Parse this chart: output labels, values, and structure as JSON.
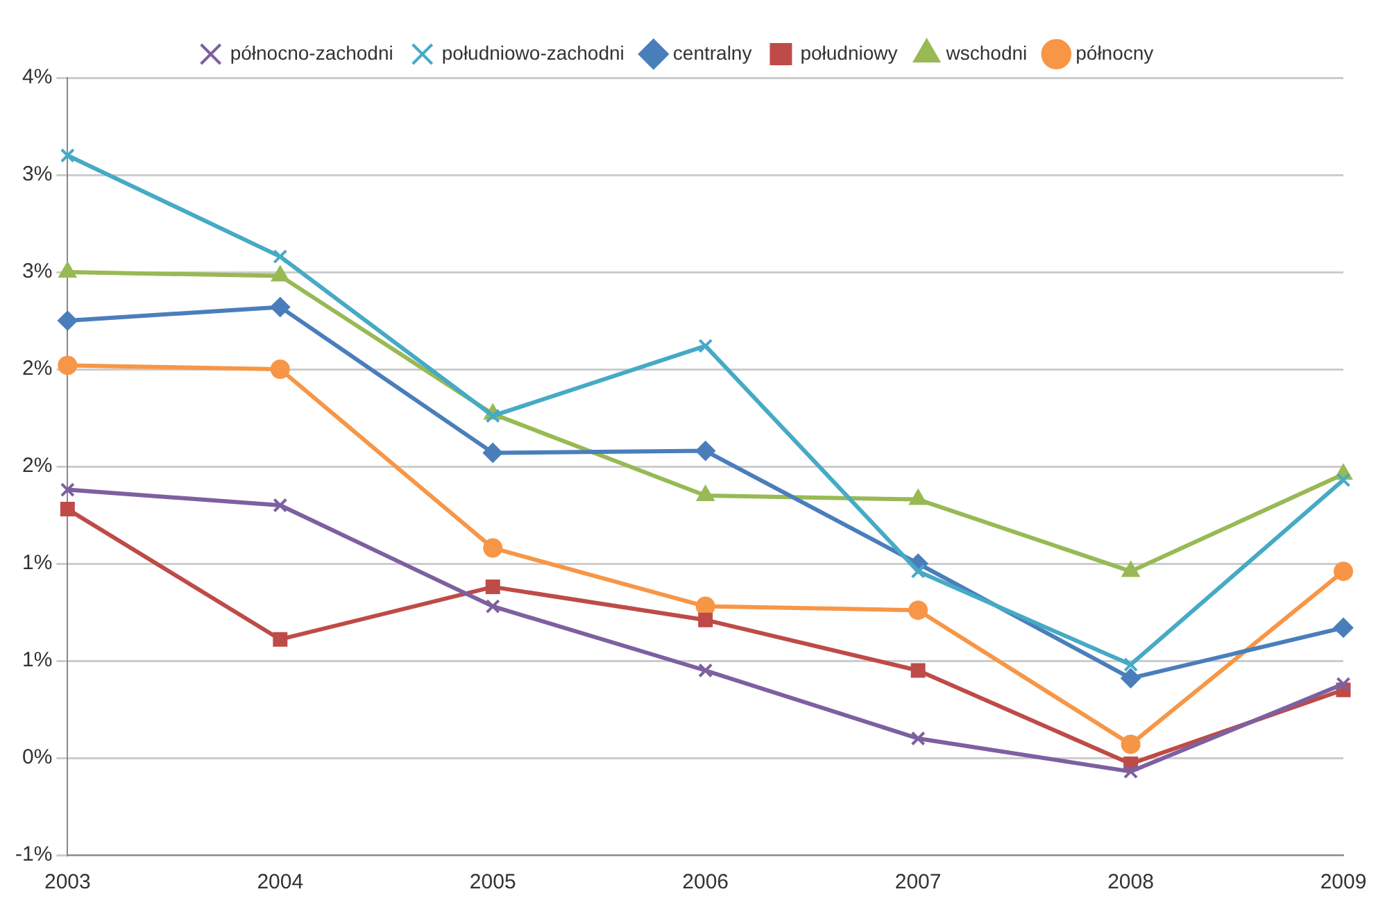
{
  "chart_data": {
    "type": "line",
    "categories": [
      "2003",
      "2004",
      "2005",
      "2006",
      "2007",
      "2008",
      "2009"
    ],
    "series": [
      {
        "name": "centralny",
        "color": "#4a7ebb",
        "marker": "diamond",
        "values": [
          2.25,
          2.32,
          1.57,
          1.58,
          1.0,
          0.41,
          0.67
        ]
      },
      {
        "name": "południowy",
        "color": "#be4b48",
        "marker": "square",
        "values": [
          1.28,
          0.61,
          0.88,
          0.71,
          0.45,
          -0.03,
          0.35
        ]
      },
      {
        "name": "wschodni",
        "color": "#98b954",
        "marker": "triangle",
        "values": [
          2.5,
          2.48,
          1.77,
          1.35,
          1.33,
          0.96,
          1.46
        ]
      },
      {
        "name": "północno-zachodni",
        "color": "#7d60a0",
        "marker": "cross",
        "values": [
          1.38,
          1.3,
          0.78,
          0.45,
          0.1,
          -0.07,
          0.38
        ]
      },
      {
        "name": "południowo-zachodni",
        "color": "#46aac5",
        "marker": "cross",
        "values": [
          3.1,
          2.58,
          1.76,
          2.12,
          0.96,
          0.48,
          1.43
        ]
      },
      {
        "name": "północny",
        "color": "#f79646",
        "marker": "circle",
        "values": [
          2.02,
          2.0,
          1.08,
          0.78,
          0.76,
          0.07,
          0.96
        ]
      }
    ],
    "ylim": [
      -0.5,
      3.5
    ],
    "yticks": [
      {
        "value": -0.5,
        "label": "-1%"
      },
      {
        "value": 0,
        "label": "0%"
      },
      {
        "value": 0.5,
        "label": "1%"
      },
      {
        "value": 1,
        "label": "1%"
      },
      {
        "value": 1.5,
        "label": "2%"
      },
      {
        "value": 2,
        "label": "2%"
      },
      {
        "value": 2.5,
        "label": "3%"
      },
      {
        "value": 3,
        "label": "3%"
      },
      {
        "value": 3.5,
        "label": "4%"
      }
    ],
    "grid": "y",
    "legend": "top"
  }
}
